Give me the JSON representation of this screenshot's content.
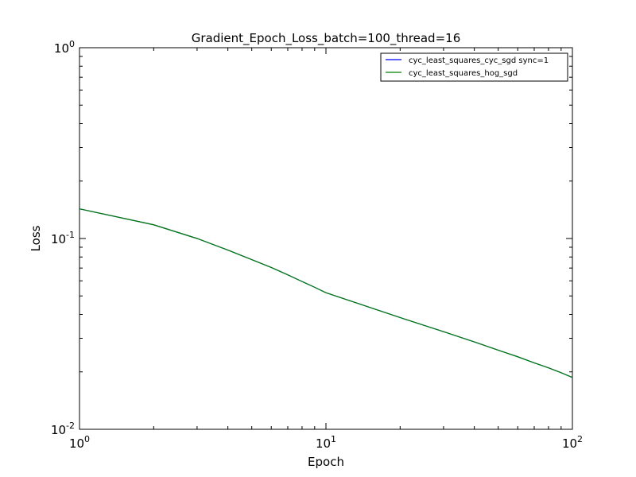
{
  "chart_data": {
    "type": "line",
    "title": "Gradient_Epoch_Loss_batch=100_thread=16",
    "xlabel": "Epoch",
    "ylabel": "Loss",
    "xscale": "log",
    "yscale": "log",
    "xlim": [
      1,
      100
    ],
    "ylim": [
      0.01,
      1
    ],
    "grid": false,
    "legend_position": "top-right",
    "x_ticks": [
      {
        "base": "10",
        "exp": "0"
      },
      {
        "base": "10",
        "exp": "1"
      },
      {
        "base": "10",
        "exp": "2"
      }
    ],
    "y_ticks": [
      {
        "base": "10",
        "exp": "-2"
      },
      {
        "base": "10",
        "exp": "-1"
      },
      {
        "base": "10",
        "exp": "0"
      }
    ],
    "series": [
      {
        "name": "cyc_least_squares_cyc_sgd sync=1",
        "color": "#0000ff",
        "x": [
          1,
          2,
          3,
          4,
          5,
          6,
          7,
          8,
          9,
          10,
          20,
          30,
          40,
          50,
          60,
          70,
          80,
          90,
          100
        ],
        "y": [
          0.143,
          0.118,
          0.1,
          0.087,
          0.0775,
          0.0705,
          0.0645,
          0.0595,
          0.0555,
          0.052,
          0.0385,
          0.0325,
          0.0287,
          0.026,
          0.024,
          0.0223,
          0.021,
          0.0198,
          0.0187
        ]
      },
      {
        "name": "cyc_least_squares_hog_sgd",
        "color": "#008000",
        "x": [
          1,
          2,
          3,
          4,
          5,
          6,
          7,
          8,
          9,
          10,
          20,
          30,
          40,
          50,
          60,
          70,
          80,
          90,
          100
        ],
        "y": [
          0.143,
          0.118,
          0.1,
          0.087,
          0.0775,
          0.0705,
          0.0645,
          0.0595,
          0.0555,
          0.052,
          0.0385,
          0.0325,
          0.0287,
          0.026,
          0.024,
          0.0223,
          0.021,
          0.0198,
          0.0187
        ]
      }
    ]
  }
}
